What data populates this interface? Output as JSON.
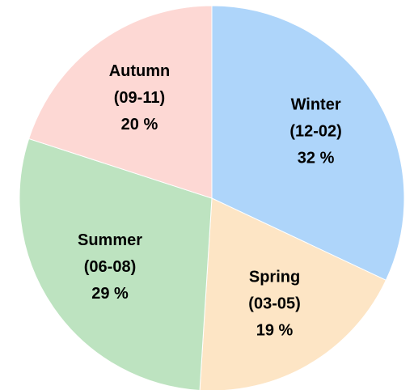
{
  "chart_data": {
    "type": "pie",
    "categories": [
      "Winter",
      "Spring",
      "Summer",
      "Autumn"
    ],
    "category_ranges": [
      "(12-02)",
      "(03-05)",
      "(06-08)",
      "(09-11)"
    ],
    "values": [
      32,
      19,
      29,
      20
    ],
    "value_labels": [
      "32 %",
      "19 %",
      "29 %",
      "20 %"
    ],
    "colors": [
      "#aed5fa",
      "#fde5c5",
      "#bde3c0",
      "#fdd8d4"
    ]
  }
}
